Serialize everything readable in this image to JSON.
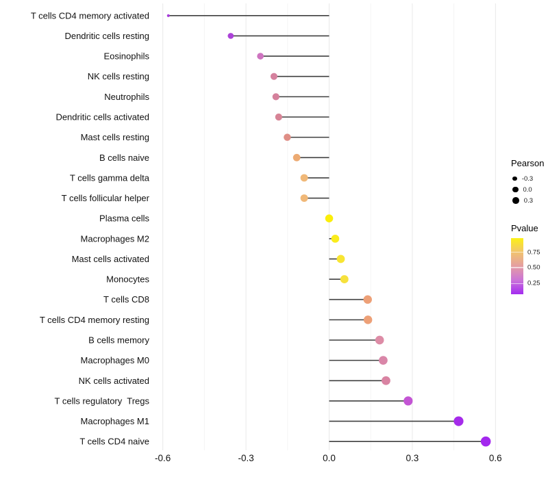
{
  "figure": {
    "background": "#ffffff"
  },
  "chart_data": {
    "type": "lollipop",
    "orientation": "horizontal",
    "title": "",
    "xlabel": "",
    "ylabel": "",
    "xlim": [
      -0.64,
      0.645
    ],
    "x_ticks": [
      -0.6,
      -0.3,
      0.0,
      0.3,
      0.6
    ],
    "x_tick_labels": [
      "-0.6",
      "-0.3",
      "0.0",
      "0.3",
      "0.6"
    ],
    "x_minor_ticks": [
      -0.45,
      -0.15,
      0.15,
      0.45
    ],
    "grid": "vertical-only",
    "points": [
      {
        "label": "T cells CD4 memory activated",
        "pearson": -0.58,
        "color": "#A73BDB"
      },
      {
        "label": "Dendritic cells resting",
        "pearson": -0.355,
        "color": "#AC42D8"
      },
      {
        "label": "Eosinophils",
        "pearson": -0.248,
        "color": "#CE74C0"
      },
      {
        "label": "NK cells resting",
        "pearson": -0.199,
        "color": "#D5819E"
      },
      {
        "label": "Neutrophils",
        "pearson": -0.192,
        "color": "#D5819C"
      },
      {
        "label": "Dendritic cells activated",
        "pearson": -0.182,
        "color": "#D78496"
      },
      {
        "label": "Mast cells resting",
        "pearson": -0.151,
        "color": "#DF8E86"
      },
      {
        "label": "B cells naive",
        "pearson": -0.117,
        "color": "#ECAA72"
      },
      {
        "label": "T cells gamma delta",
        "pearson": -0.09,
        "color": "#F0B878"
      },
      {
        "label": "T cells follicular helper",
        "pearson": -0.09,
        "color": "#F0B878"
      },
      {
        "label": "Plasma cells",
        "pearson": 0.0,
        "color": "#FBEE0A"
      },
      {
        "label": "Macrophages M2",
        "pearson": 0.022,
        "color": "#FAEC1C"
      },
      {
        "label": "Mast cells activated",
        "pearson": 0.042,
        "color": "#F8E532"
      },
      {
        "label": "Monocytes",
        "pearson": 0.055,
        "color": "#F6E13C"
      },
      {
        "label": "T cells CD8",
        "pearson": 0.139,
        "color": "#EDA077"
      },
      {
        "label": "T cells CD4 memory resting",
        "pearson": 0.14,
        "color": "#EDA077"
      },
      {
        "label": "B cells memory",
        "pearson": 0.182,
        "color": "#DD8CA6"
      },
      {
        "label": "Macrophages M0",
        "pearson": 0.195,
        "color": "#D986A8"
      },
      {
        "label": "NK cells activated",
        "pearson": 0.205,
        "color": "#D983A2"
      },
      {
        "label": "T cells regulatory  Tregs",
        "pearson": 0.285,
        "color": "#C355D4"
      },
      {
        "label": "Macrophages M1",
        "pearson": 0.467,
        "color": "#A52BEA"
      },
      {
        "label": "T cells CD4 naive",
        "pearson": 0.565,
        "color": "#A328EE"
      }
    ]
  },
  "legend": {
    "pearson": {
      "title": "Pearson",
      "dot_color": "#000000",
      "items": [
        {
          "label": "-0.3",
          "value": -0.3
        },
        {
          "label": "0.0",
          "value": 0.0
        },
        {
          "label": "0.3",
          "value": 0.3
        }
      ]
    },
    "pvalue": {
      "title": "Pvalue",
      "gradient": [
        "#FCF115",
        "#F1C46E",
        "#E49DA2",
        "#CB74D8",
        "#A32CF0"
      ],
      "ticks": [
        {
          "label": "0.75",
          "pos_pct": 25
        },
        {
          "label": "0.50",
          "pos_pct": 52.5
        },
        {
          "label": "0.25",
          "pos_pct": 81
        }
      ]
    }
  },
  "colors": {
    "segment": "#3f3f3f",
    "grid_major": "#e8e8e8",
    "grid_minor": "#f4f4f4",
    "axis_text": "#111111"
  }
}
